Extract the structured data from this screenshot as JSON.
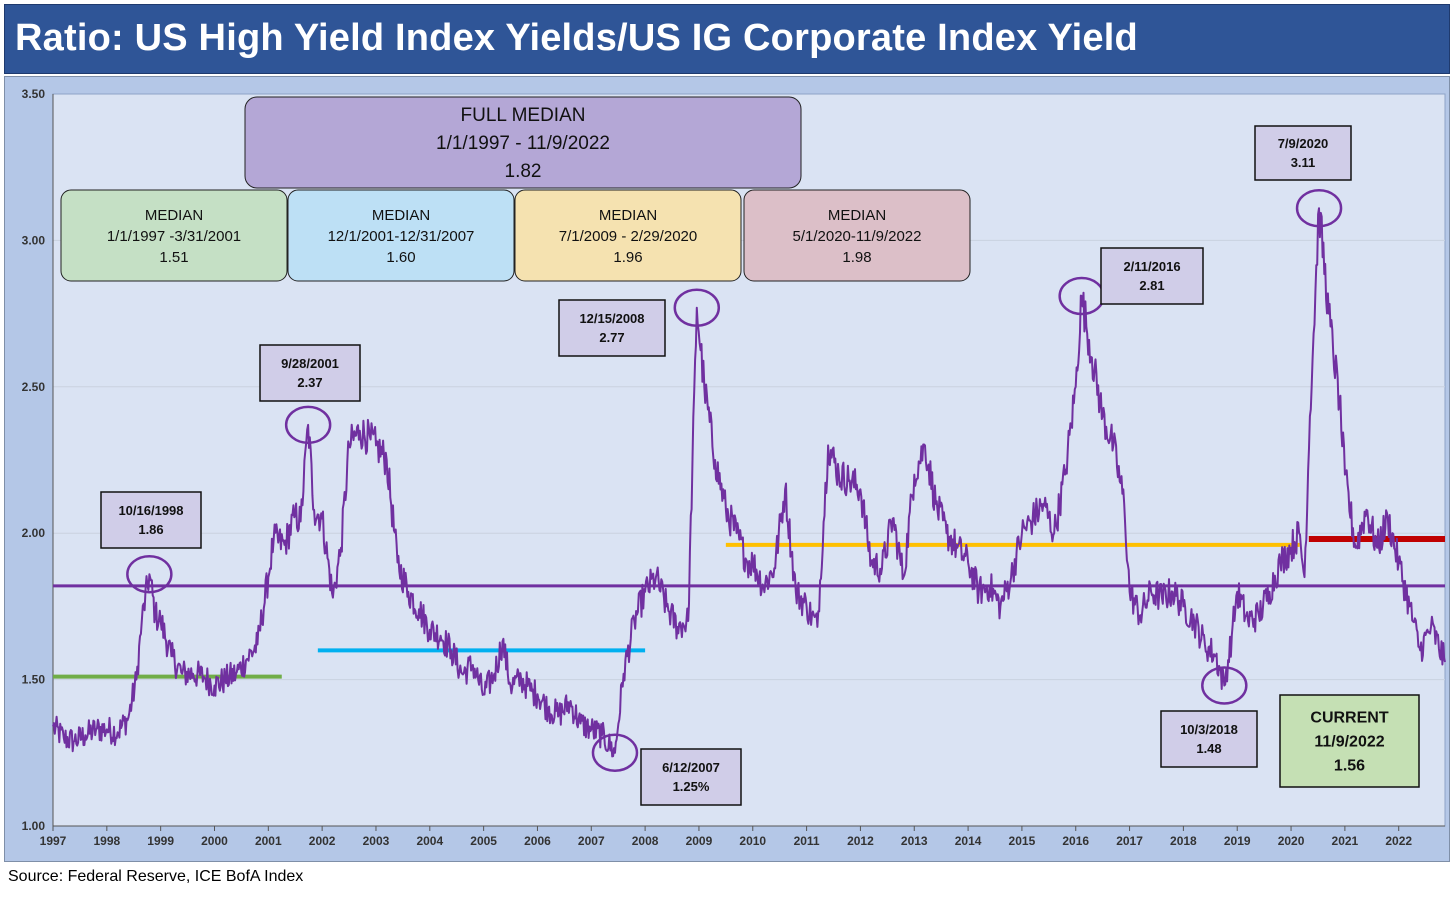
{
  "header": {
    "title": "Ratio: US High Yield Index Yields/US IG Corporate Index Yield"
  },
  "source": "Source: Federal Reserve, ICE BofA Index",
  "colors": {
    "series": "#7030a0",
    "full_median": "#7030a0",
    "median_1997_2001": "#70ad47",
    "median_2001_2007": "#00b0f0",
    "median_2009_2020": "#ffc000",
    "median_2020_2022": "#c00000",
    "plot_bg": "#dae3f3",
    "frame_bg": "#b4c7e7"
  },
  "chart_data": {
    "type": "line",
    "title": "Ratio: US High Yield Index Yields/US IG Corporate Index Yield",
    "xlabel": "",
    "ylabel": "",
    "xlim": [
      1997.0,
      2022.86
    ],
    "ylim": [
      1.0,
      3.5
    ],
    "yticks": [
      "1.00",
      "1.50",
      "2.00",
      "2.50",
      "3.00",
      "3.50"
    ],
    "xticks": [
      "1997",
      "1998",
      "1999",
      "2000",
      "2001",
      "2002",
      "2003",
      "2004",
      "2005",
      "2006",
      "2007",
      "2008",
      "2009",
      "2010",
      "2011",
      "2012",
      "2013",
      "2014",
      "2015",
      "2016",
      "2017",
      "2018",
      "2019",
      "2020",
      "2021",
      "2022"
    ],
    "grid": true,
    "series": [
      {
        "name": "HY/IG Yield Ratio",
        "x": [
          1997.0,
          1997.2,
          1997.4,
          1997.6,
          1997.8,
          1998.0,
          1998.2,
          1998.4,
          1998.55,
          1998.65,
          1998.79,
          1998.9,
          1999.0,
          1999.2,
          1999.4,
          1999.6,
          1999.8,
          2000.0,
          2000.2,
          2000.4,
          2000.6,
          2000.8,
          2001.0,
          2001.1,
          2001.3,
          2001.5,
          2001.6,
          2001.74,
          2001.85,
          2002.0,
          2002.2,
          2002.35,
          2002.5,
          2002.7,
          2002.9,
          2003.0,
          2003.2,
          2003.4,
          2003.6,
          2003.8,
          2004.0,
          2004.2,
          2004.4,
          2004.6,
          2004.8,
          2005.0,
          2005.2,
          2005.35,
          2005.5,
          2005.7,
          2005.9,
          2006.0,
          2006.2,
          2006.4,
          2006.6,
          2006.8,
          2007.0,
          2007.2,
          2007.44,
          2007.6,
          2007.8,
          2008.0,
          2008.2,
          2008.4,
          2008.6,
          2008.8,
          2008.96,
          2009.1,
          2009.3,
          2009.5,
          2009.7,
          2009.9,
          2010.0,
          2010.2,
          2010.4,
          2010.6,
          2010.8,
          2011.0,
          2011.2,
          2011.4,
          2011.6,
          2011.8,
          2012.0,
          2012.2,
          2012.4,
          2012.6,
          2012.8,
          2013.0,
          2013.2,
          2013.4,
          2013.6,
          2013.8,
          2014.0,
          2014.2,
          2014.4,
          2014.6,
          2014.8,
          2015.0,
          2015.2,
          2015.4,
          2015.6,
          2015.8,
          2016.0,
          2016.11,
          2016.3,
          2016.5,
          2016.7,
          2016.9,
          2017.0,
          2017.2,
          2017.4,
          2017.6,
          2017.8,
          2018.0,
          2018.2,
          2018.4,
          2018.6,
          2018.76,
          2018.9,
          2019.0,
          2019.2,
          2019.4,
          2019.6,
          2019.8,
          2020.0,
          2020.15,
          2020.25,
          2020.35,
          2020.52,
          2020.7,
          2020.9,
          2021.0,
          2021.2,
          2021.4,
          2021.6,
          2021.8,
          2022.0,
          2022.2,
          2022.4,
          2022.6,
          2022.86
        ],
        "values": [
          1.34,
          1.3,
          1.29,
          1.31,
          1.33,
          1.33,
          1.32,
          1.37,
          1.5,
          1.7,
          1.86,
          1.72,
          1.7,
          1.58,
          1.52,
          1.52,
          1.51,
          1.48,
          1.5,
          1.52,
          1.57,
          1.62,
          1.85,
          1.98,
          1.96,
          2.06,
          2.04,
          2.37,
          2.08,
          2.05,
          1.78,
          1.95,
          2.3,
          2.35,
          2.32,
          2.3,
          2.25,
          1.9,
          1.8,
          1.74,
          1.67,
          1.65,
          1.6,
          1.52,
          1.55,
          1.45,
          1.52,
          1.63,
          1.48,
          1.5,
          1.46,
          1.45,
          1.4,
          1.38,
          1.42,
          1.35,
          1.33,
          1.31,
          1.25,
          1.52,
          1.7,
          1.8,
          1.85,
          1.75,
          1.68,
          1.7,
          2.77,
          2.5,
          2.25,
          2.08,
          2.0,
          1.9,
          1.9,
          1.82,
          1.88,
          2.15,
          1.8,
          1.75,
          1.68,
          2.3,
          2.2,
          2.18,
          2.15,
          1.9,
          1.88,
          2.05,
          1.85,
          2.2,
          2.3,
          2.1,
          2.0,
          1.95,
          1.9,
          1.8,
          1.82,
          1.75,
          1.85,
          2.0,
          2.05,
          2.1,
          2.0,
          2.2,
          2.5,
          2.81,
          2.6,
          2.4,
          2.3,
          2.1,
          1.8,
          1.72,
          1.8,
          1.78,
          1.8,
          1.75,
          1.7,
          1.62,
          1.58,
          1.48,
          1.65,
          1.8,
          1.7,
          1.72,
          1.8,
          1.9,
          1.95,
          2.0,
          1.85,
          2.4,
          3.11,
          2.75,
          2.45,
          2.2,
          1.95,
          2.08,
          1.95,
          2.05,
          1.9,
          1.75,
          1.6,
          1.68,
          1.56
        ]
      }
    ],
    "reference_lines": [
      {
        "name": "Full Median",
        "value": 1.82,
        "x_from": 1997.0,
        "x_to": 2022.86
      },
      {
        "name": "Median 1/1/1997-3/31/2001",
        "value": 1.51,
        "x_from": 1997.0,
        "x_to": 2001.25
      },
      {
        "name": "Median 12/1/2001-12/31/2007",
        "value": 1.6,
        "x_from": 2001.92,
        "x_to": 2008.0
      },
      {
        "name": "Median 7/1/2009-2/29/2020",
        "value": 1.96,
        "x_from": 2009.5,
        "x_to": 2020.16
      },
      {
        "name": "Median 5/1/2020-11/9/2022",
        "value": 1.98,
        "x_from": 2020.33,
        "x_to": 2022.86
      }
    ],
    "median_boxes": [
      {
        "id": "full",
        "lines": [
          "FULL MEDIAN",
          "1/1/1997 - 11/9/2022",
          "1.82"
        ]
      },
      {
        "id": "m1",
        "lines": [
          "MEDIAN",
          "1/1/1997 -3/31/2001",
          "1.51"
        ]
      },
      {
        "id": "m2",
        "lines": [
          "MEDIAN",
          "12/1/2001-12/31/2007",
          "1.60"
        ]
      },
      {
        "id": "m3",
        "lines": [
          "MEDIAN",
          "7/1/2009 - 2/29/2020",
          "1.96"
        ]
      },
      {
        "id": "m4",
        "lines": [
          "MEDIAN",
          "5/1/2020-11/9/2022",
          "1.98"
        ]
      }
    ],
    "annotations": [
      {
        "date": "10/16/1998",
        "value": "1.86",
        "x": 1998.79,
        "y": 1.86
      },
      {
        "date": "9/28/2001",
        "value": "2.37",
        "x": 2001.74,
        "y": 2.37
      },
      {
        "date": "12/15/2008",
        "value": "2.77",
        "x": 2008.96,
        "y": 2.77
      },
      {
        "date": "6/12/2007",
        "value": "1.25%",
        "x": 2007.44,
        "y": 1.25
      },
      {
        "date": "2/11/2016",
        "value": "2.81",
        "x": 2016.11,
        "y": 2.81
      },
      {
        "date": "7/9/2020",
        "value": "3.11",
        "x": 2020.52,
        "y": 3.11
      },
      {
        "date": "10/3/2018",
        "value": "1.48",
        "x": 2018.76,
        "y": 1.48
      }
    ],
    "current_box": {
      "lines": [
        "CURRENT",
        "11/9/2022",
        "1.56"
      ]
    }
  }
}
